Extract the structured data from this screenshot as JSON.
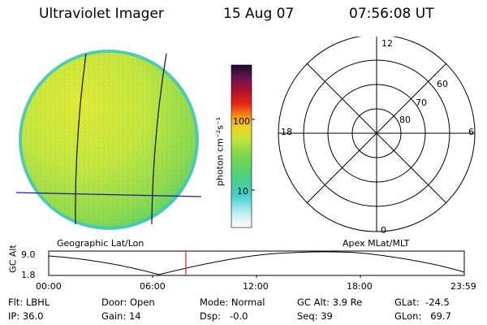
{
  "header": {
    "instrument": "Ultraviolet Imager",
    "date": "15 Aug 07",
    "time": "07:56:08 UT"
  },
  "image_panel": {
    "caption": "Geographic Lat/Lon"
  },
  "colorbar": {
    "unit_label": "photon cm⁻²s⁻¹",
    "ticks": [
      "100",
      "10"
    ],
    "scale": "log"
  },
  "polar_panel": {
    "caption": "Apex MLat/MLT",
    "mlt_labels": [
      "12",
      "18",
      "6",
      "0"
    ],
    "mlat_labels": [
      "60",
      "70",
      "80"
    ]
  },
  "orbit": {
    "y_axis_label": "GC Alt",
    "y_ticks": [
      "9.0",
      "1.8"
    ],
    "x_ticks": [
      "00:00",
      "06:00",
      "12:00",
      "18:00",
      "23:59"
    ],
    "current_time_fraction": 0.33
  },
  "status": {
    "flt": "Flt: LBHL",
    "ip": "IP: 36.0",
    "door": "Door: Open",
    "gain": "Gain: 14",
    "mode": "Mode: Normal",
    "dsp": "Dsp:   -0.0",
    "gc_alt": "GC Alt: 3.9 Re",
    "seq": "Seq: 39",
    "glat": "GLat:  -24.5",
    "glon": "GLon:   69.7"
  }
}
